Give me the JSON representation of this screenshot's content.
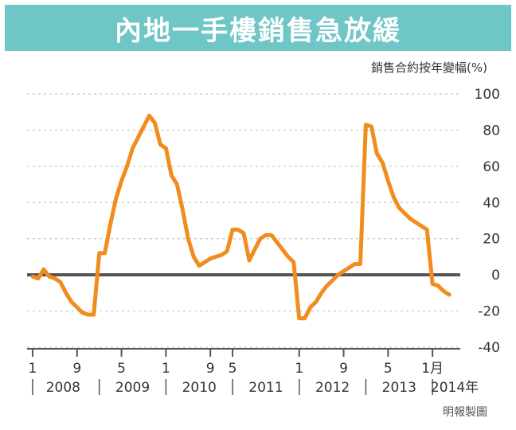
{
  "chart_data": {
    "type": "line",
    "title": "內地一手樓銷售急放緩",
    "ylabel": "銷售合約按年變幅(%)",
    "ylim": [
      -40,
      100
    ],
    "y_ticks": [
      100,
      80,
      60,
      40,
      20,
      0,
      -20,
      -40
    ],
    "x_tick_labels": [
      "1",
      "9",
      "5",
      "1",
      "9",
      "5",
      "1",
      "9",
      "5",
      "1月"
    ],
    "x_tick_positions": [
      0,
      8,
      16,
      24,
      32,
      36,
      48,
      56,
      64,
      72
    ],
    "year_labels": [
      {
        "label": "2008",
        "center": 5.5
      },
      {
        "label": "2009",
        "center": 18
      },
      {
        "label": "2010",
        "center": 30
      },
      {
        "label": "2011",
        "center": 42
      },
      {
        "label": "2012",
        "center": 54
      },
      {
        "label": "2013",
        "center": 66
      },
      {
        "label": "2014年",
        "center": 76
      }
    ],
    "series": [
      {
        "name": "",
        "color": "#f28c1e",
        "points": [
          [
            0,
            -1
          ],
          [
            1,
            -2
          ],
          [
            2,
            3
          ],
          [
            3,
            -1
          ],
          [
            4,
            -2
          ],
          [
            5,
            -4
          ],
          [
            6,
            -10
          ],
          [
            7,
            -15
          ],
          [
            8,
            -18
          ],
          [
            9,
            -21
          ],
          [
            10,
            -22
          ],
          [
            11,
            -22
          ],
          [
            12,
            12
          ],
          [
            13,
            12
          ],
          [
            14,
            28
          ],
          [
            15,
            42
          ],
          [
            16,
            52
          ],
          [
            17,
            60
          ],
          [
            18,
            70
          ],
          [
            19,
            76
          ],
          [
            20,
            82
          ],
          [
            21,
            88
          ],
          [
            22,
            84
          ],
          [
            23,
            72
          ],
          [
            24,
            70
          ],
          [
            25,
            55
          ],
          [
            26,
            50
          ],
          [
            27,
            36
          ],
          [
            28,
            20
          ],
          [
            29,
            10
          ],
          [
            30,
            5
          ],
          [
            31,
            7
          ],
          [
            32,
            9
          ],
          [
            33,
            10
          ],
          [
            34,
            11
          ],
          [
            35,
            13
          ],
          [
            36,
            25
          ],
          [
            37,
            25
          ],
          [
            38,
            23
          ],
          [
            39,
            8
          ],
          [
            40,
            14
          ],
          [
            41,
            20
          ],
          [
            42,
            22
          ],
          [
            43,
            22
          ],
          [
            44,
            18
          ],
          [
            45,
            14
          ],
          [
            46,
            10
          ],
          [
            47,
            7
          ],
          [
            48,
            -24
          ],
          [
            49,
            -24
          ],
          [
            50,
            -18
          ],
          [
            51,
            -15
          ],
          [
            52,
            -10
          ],
          [
            53,
            -6
          ],
          [
            54,
            -3
          ],
          [
            55,
            0
          ],
          [
            56,
            2
          ],
          [
            57,
            4
          ],
          [
            58,
            6
          ],
          [
            59,
            6
          ],
          [
            60,
            83
          ],
          [
            61,
            82
          ],
          [
            62,
            67
          ],
          [
            63,
            62
          ],
          [
            64,
            52
          ],
          [
            65,
            43
          ],
          [
            66,
            37
          ],
          [
            67,
            34
          ],
          [
            68,
            31
          ],
          [
            69,
            29
          ],
          [
            70,
            27
          ],
          [
            71,
            25
          ],
          [
            72,
            -5
          ],
          [
            73,
            -6
          ],
          [
            74,
            -9
          ],
          [
            75,
            -11
          ]
        ]
      }
    ]
  },
  "credit": "明報製圖"
}
